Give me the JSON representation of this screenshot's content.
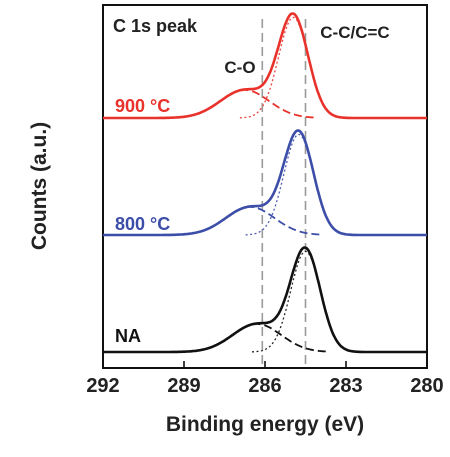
{
  "chart_data": {
    "type": "line",
    "title": "C 1s peak",
    "xlabel": "Binding energy (eV)",
    "ylabel": "Counts (a.u.)",
    "xlim": [
      292,
      280
    ],
    "x_reversed": true,
    "x_ticks": [
      292,
      289,
      286,
      283,
      280
    ],
    "y_ticks_shown": false,
    "grid": false,
    "reference_lines": [
      {
        "x": 286.1,
        "label": "C-O",
        "style": "dashed"
      },
      {
        "x": 284.5,
        "label": "C-C/C=C",
        "style": "dashed"
      }
    ],
    "components": {
      "main": {
        "center_shift": 0.0,
        "sigma": 0.55
      },
      "co": {
        "center_shift": 1.8,
        "sigma": 0.9
      }
    },
    "series": [
      {
        "name": "900 °C",
        "color": "#e8322b",
        "offset": 2.0,
        "main_center": 284.95,
        "main_amp": 0.86,
        "co_amp": 0.24
      },
      {
        "name": "800 °C",
        "color": "#3c4ea8",
        "offset": 1.0,
        "main_center": 284.75,
        "main_amp": 0.86,
        "co_amp": 0.24
      },
      {
        "name": "NA",
        "color": "#111111",
        "offset": 0.0,
        "main_center": 284.5,
        "main_amp": 0.86,
        "co_amp": 0.24
      }
    ]
  }
}
